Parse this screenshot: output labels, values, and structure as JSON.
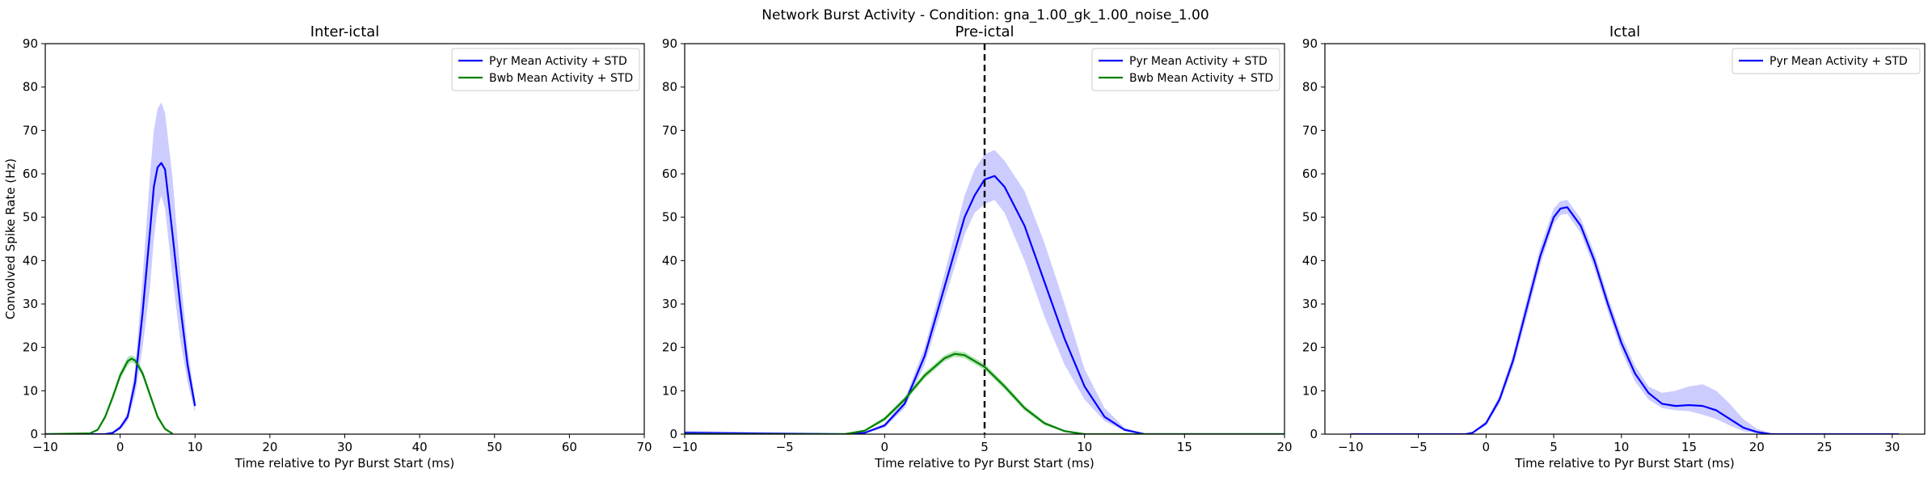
{
  "suptitle": "Network Burst Activity - Condition: gna_1.00_gk_1.00_noise_1.00",
  "colors": {
    "pyr": "#0000ff",
    "pyr_band": "#9999ff",
    "bwb": "#008000",
    "bwb_band": "#66cc66",
    "marker": "#000000"
  },
  "chart_data": [
    {
      "type": "line",
      "title": "Inter-ictal",
      "xlabel": "Time relative to Pyr Burst Start (ms)",
      "ylabel": "Convolved Spike Rate (Hz)",
      "xlim": [
        -10,
        70
      ],
      "ylim": [
        0,
        90
      ],
      "xticks": [
        -10,
        0,
        10,
        20,
        30,
        40,
        50,
        60,
        70
      ],
      "yticks": [
        0,
        10,
        20,
        30,
        40,
        50,
        60,
        70,
        80,
        90
      ],
      "legend": "top-right",
      "series": [
        {
          "name": "Pyr Mean Activity + STD",
          "color": "pyr",
          "band_color": "pyr_band",
          "x": [
            -10,
            -2,
            -1,
            0,
            1,
            2,
            3,
            4,
            4.5,
            5,
            5.5,
            6,
            7,
            8,
            9,
            10
          ],
          "y": [
            0,
            0,
            0.3,
            1.5,
            4,
            12,
            28,
            47,
            57,
            61.5,
            62.5,
            61,
            46,
            30,
            16,
            6.5
          ],
          "ylow": [
            0,
            0,
            0.1,
            1,
            3,
            9,
            20,
            34,
            45,
            52,
            55,
            52,
            36,
            22,
            12,
            5
          ],
          "yhigh": [
            0,
            0,
            0.5,
            2,
            5,
            15,
            36,
            60,
            70,
            75,
            76.5,
            74,
            59,
            38,
            20,
            8
          ]
        },
        {
          "name": "Bwb Mean Activity + STD",
          "color": "bwb",
          "band_color": "bwb_band",
          "x": [
            -10,
            -4,
            -3,
            -2,
            -1,
            0,
            1,
            1.5,
            2,
            3,
            4,
            5,
            6,
            7
          ],
          "y": [
            0,
            0.2,
            1,
            4,
            8.5,
            13.5,
            16.8,
            17.4,
            17,
            14,
            9,
            4,
            1.2,
            0.1
          ],
          "ylow": [
            0,
            0.1,
            0.8,
            3.4,
            7.8,
            12.6,
            15.8,
            16.6,
            16.2,
            13.2,
            8.2,
            3.4,
            0.9,
            0
          ],
          "yhigh": [
            0,
            0.3,
            1.2,
            4.6,
            9.2,
            14.4,
            17.8,
            18.2,
            17.8,
            14.8,
            9.8,
            4.6,
            1.5,
            0.2
          ]
        }
      ]
    },
    {
      "type": "line",
      "title": "Pre-ictal",
      "xlabel": "Time relative to Pyr Burst Start (ms)",
      "ylabel": "",
      "xlim": [
        -10,
        20
      ],
      "ylim": [
        0,
        90
      ],
      "xticks": [
        -10,
        -5,
        0,
        5,
        10,
        15,
        20
      ],
      "yticks": [
        0,
        10,
        20,
        30,
        40,
        50,
        60,
        70,
        80,
        90
      ],
      "legend": "top-right",
      "vline": 5,
      "series": [
        {
          "name": "Pyr Mean Activity + STD",
          "color": "pyr",
          "band_color": "pyr_band",
          "x": [
            -10,
            -2,
            -1,
            0,
            1,
            2,
            3,
            4,
            4.5,
            5,
            5.5,
            6,
            7,
            8,
            9,
            10,
            11,
            12,
            13,
            20
          ],
          "y": [
            0.3,
            0,
            0.3,
            2,
            7,
            18,
            34,
            50,
            55,
            58.7,
            59.5,
            57,
            48,
            35,
            22,
            11,
            4,
            1,
            0,
            0
          ],
          "ylow": [
            0,
            0,
            0.2,
            1.5,
            6,
            16,
            31,
            46,
            51,
            53,
            54,
            51,
            40,
            27,
            16,
            8,
            3,
            0.7,
            0,
            0
          ],
          "yhigh": [
            0.8,
            0,
            0.5,
            2.5,
            8,
            20,
            37,
            55,
            61,
            64.5,
            65.5,
            63,
            56,
            44,
            30,
            15,
            6,
            1.5,
            0,
            0
          ]
        },
        {
          "name": "Bwb Mean Activity + STD",
          "color": "bwb",
          "band_color": "bwb_band",
          "x": [
            -10,
            -2,
            -1,
            0,
            1,
            2,
            3,
            3.5,
            4,
            5,
            6,
            7,
            8,
            9,
            10,
            20
          ],
          "y": [
            0,
            0,
            0.8,
            3.5,
            8,
            13.5,
            17.5,
            18.5,
            18.2,
            15.5,
            11,
            6,
            2.5,
            0.7,
            0,
            0
          ],
          "ylow": [
            0,
            0,
            0.6,
            3,
            7.4,
            12.8,
            16.8,
            17.8,
            17.5,
            14.8,
            10.3,
            5.4,
            2.1,
            0.5,
            0,
            0
          ],
          "yhigh": [
            0,
            0,
            1,
            4,
            8.6,
            14.2,
            18.2,
            19.2,
            18.9,
            16.2,
            11.7,
            6.6,
            2.9,
            0.9,
            0,
            0
          ]
        }
      ]
    },
    {
      "type": "line",
      "title": "Ictal",
      "xlabel": "Time relative to Pyr Burst Start (ms)",
      "ylabel": "",
      "xlim": [
        -11.9,
        32.4
      ],
      "ylim": [
        0,
        90
      ],
      "xticks": [
        -10,
        -5,
        0,
        5,
        10,
        15,
        20,
        25,
        30
      ],
      "yticks": [
        0,
        10,
        20,
        30,
        40,
        50,
        60,
        70,
        80,
        90
      ],
      "legend": "top-right",
      "series": [
        {
          "name": "Pyr Mean Activity + STD",
          "color": "pyr",
          "band_color": "pyr_band",
          "x": [
            -10,
            -1.5,
            -1,
            0,
            1,
            2,
            3,
            4,
            5,
            5.5,
            6,
            7,
            8,
            9,
            10,
            11,
            12,
            13,
            14,
            15,
            16,
            17,
            18,
            19,
            20,
            21,
            22,
            30.5
          ],
          "y": [
            0,
            0,
            0.3,
            2.5,
            8,
            17,
            29,
            41,
            50,
            52,
            52.3,
            48,
            40,
            30,
            21,
            14,
            9.5,
            7,
            6.5,
            6.7,
            6.5,
            5.5,
            3.5,
            1.5,
            0.5,
            0,
            0,
            0
          ],
          "ylow": [
            0,
            0,
            0.2,
            2,
            7,
            15.5,
            27,
            39,
            48.5,
            50.5,
            50.8,
            46.3,
            38.2,
            28.2,
            19.2,
            12.2,
            8,
            6,
            5.5,
            5.3,
            4.5,
            3.5,
            2,
            0.7,
            0.2,
            0,
            0,
            0
          ],
          "yhigh": [
            0,
            0,
            0.5,
            3,
            9,
            18.5,
            31,
            43,
            52,
            53.7,
            54,
            49.7,
            41.8,
            31.8,
            22.8,
            15.8,
            11,
            9.5,
            10,
            11,
            11.5,
            10,
            7,
            3.5,
            1.2,
            0.3,
            0,
            0
          ]
        }
      ]
    }
  ]
}
